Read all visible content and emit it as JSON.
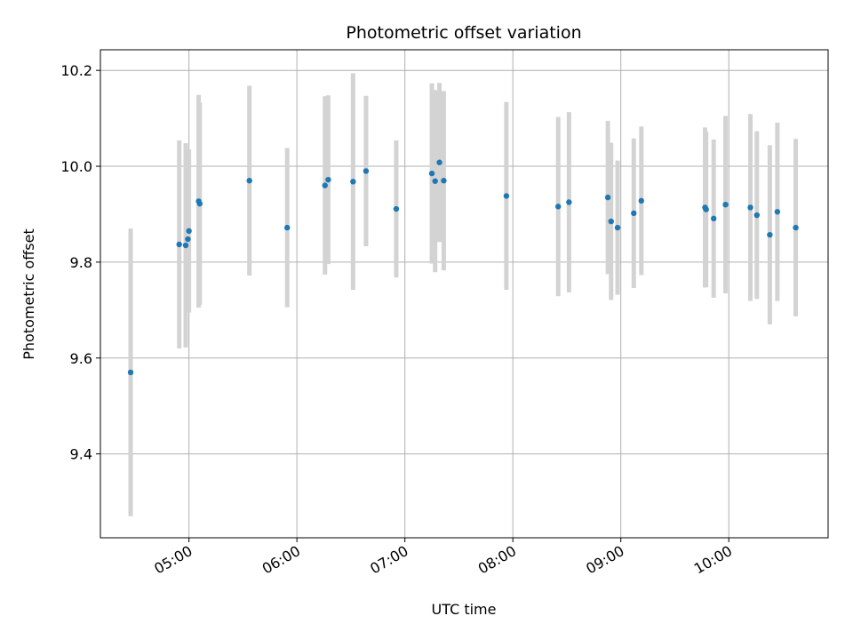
{
  "chart_data": {
    "type": "scatter",
    "title": "Photometric offset variation",
    "xlabel": "UTC time",
    "ylabel": "Photometric offset",
    "x_unit": "hours",
    "xlim": [
      4.18,
      10.92
    ],
    "ylim": [
      9.225,
      10.243
    ],
    "xticks": [
      5,
      6,
      7,
      8,
      9,
      10
    ],
    "xtick_labels": [
      "05:00",
      "06:00",
      "07:00",
      "08:00",
      "09:00",
      "10:00"
    ],
    "yticks": [
      9.4,
      9.6,
      9.8,
      10.0,
      10.2
    ],
    "ytick_labels": [
      "9.4",
      "9.6",
      "9.8",
      "10.0",
      "10.2"
    ],
    "grid": true,
    "colors": {
      "point": "#1f77b4",
      "errorbar": "#d3d3d3",
      "grid": "#b0b0b0"
    },
    "points": [
      {
        "x": 4.46,
        "y": 9.57,
        "err": 0.3
      },
      {
        "x": 4.91,
        "y": 9.837,
        "err": 0.217
      },
      {
        "x": 4.97,
        "y": 9.835,
        "err": 0.213
      },
      {
        "x": 4.99,
        "y": 9.848,
        "err": 0.15
      },
      {
        "x": 5.0,
        "y": 9.865,
        "err": 0.17
      },
      {
        "x": 5.09,
        "y": 9.927,
        "err": 0.222
      },
      {
        "x": 5.1,
        "y": 9.922,
        "err": 0.211
      },
      {
        "x": 5.56,
        "y": 9.97,
        "err": 0.198
      },
      {
        "x": 5.91,
        "y": 9.872,
        "err": 0.166
      },
      {
        "x": 6.26,
        "y": 9.96,
        "err": 0.186
      },
      {
        "x": 6.29,
        "y": 9.972,
        "err": 0.176
      },
      {
        "x": 6.52,
        "y": 9.968,
        "err": 0.226
      },
      {
        "x": 6.64,
        "y": 9.99,
        "err": 0.157
      },
      {
        "x": 6.92,
        "y": 9.911,
        "err": 0.143
      },
      {
        "x": 7.25,
        "y": 9.985,
        "err": 0.188
      },
      {
        "x": 7.28,
        "y": 9.969,
        "err": 0.19
      },
      {
        "x": 7.32,
        "y": 10.008,
        "err": 0.166
      },
      {
        "x": 7.36,
        "y": 9.97,
        "err": 0.187
      },
      {
        "x": 7.94,
        "y": 9.938,
        "err": 0.196
      },
      {
        "x": 8.42,
        "y": 9.916,
        "err": 0.187
      },
      {
        "x": 8.52,
        "y": 9.925,
        "err": 0.188
      },
      {
        "x": 8.88,
        "y": 9.935,
        "err": 0.16
      },
      {
        "x": 8.91,
        "y": 9.885,
        "err": 0.164
      },
      {
        "x": 8.97,
        "y": 9.872,
        "err": 0.14
      },
      {
        "x": 9.12,
        "y": 9.902,
        "err": 0.156
      },
      {
        "x": 9.19,
        "y": 9.928,
        "err": 0.155
      },
      {
        "x": 9.78,
        "y": 9.914,
        "err": 0.167
      },
      {
        "x": 9.79,
        "y": 9.91,
        "err": 0.162
      },
      {
        "x": 9.86,
        "y": 9.891,
        "err": 0.165
      },
      {
        "x": 9.97,
        "y": 9.92,
        "err": 0.185
      },
      {
        "x": 10.2,
        "y": 9.914,
        "err": 0.195
      },
      {
        "x": 10.26,
        "y": 9.898,
        "err": 0.175
      },
      {
        "x": 10.38,
        "y": 9.857,
        "err": 0.187
      },
      {
        "x": 10.45,
        "y": 9.905,
        "err": 0.186
      },
      {
        "x": 10.62,
        "y": 9.872,
        "err": 0.185
      }
    ]
  }
}
